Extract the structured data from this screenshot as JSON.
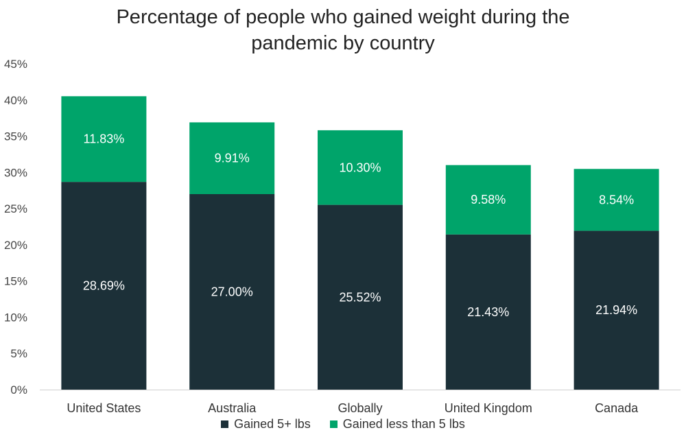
{
  "colors": {
    "series1": "#1c3038",
    "series2": "#00a46a",
    "axis": "#cfcfcf"
  },
  "chart_data": {
    "type": "bar",
    "stacked": true,
    "title_line1": "Percentage of people who gained weight during the",
    "title_line2": "pandemic by country",
    "categories": [
      "United States",
      "Australia",
      "Globally",
      "United Kingdom",
      "Canada"
    ],
    "series": [
      {
        "name": "Gained 5+ lbs",
        "values": [
          28.69,
          27.0,
          25.52,
          21.43,
          21.94
        ],
        "labels": [
          "28.69%",
          "27.00%",
          "25.52%",
          "21.43%",
          "21.94%"
        ]
      },
      {
        "name": "Gained less than 5 lbs",
        "values": [
          11.83,
          9.91,
          10.3,
          9.58,
          8.54
        ],
        "labels": [
          "11.83%",
          "9.91%",
          "10.30%",
          "9.58%",
          "8.54%"
        ]
      }
    ],
    "ylim": [
      0,
      45
    ],
    "yticks": [
      0,
      5,
      10,
      15,
      20,
      25,
      30,
      35,
      40,
      45
    ],
    "ytick_labels": [
      "0%",
      "5%",
      "10%",
      "15%",
      "20%",
      "25%",
      "30%",
      "35%",
      "40%",
      "45%"
    ],
    "grid": false,
    "legend_position": "bottom-center",
    "xlabel": "",
    "ylabel": ""
  }
}
